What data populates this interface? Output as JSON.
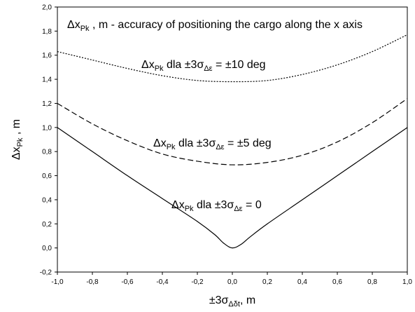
{
  "chart_data": {
    "type": "line",
    "title": "",
    "xlabel": "",
    "ylabel": "",
    "xlim": [
      -1.0,
      1.0
    ],
    "ylim": [
      -0.2,
      2.0
    ],
    "grid": false,
    "x_ticks": [
      "-1,0",
      "-0,8",
      "-0,6",
      "-0,4",
      "-0,2",
      "0,0",
      "0,2",
      "0,4",
      "0,6",
      "0,8",
      "1,0"
    ],
    "y_ticks": [
      "-0,2",
      "0,0",
      "0,2",
      "0,4",
      "0,6",
      "0,8",
      "1,0",
      "1,2",
      "1,4",
      "1,6",
      "1,8",
      "2,0"
    ],
    "series": [
      {
        "style": "dotted",
        "x": [
          -1.0,
          -0.8,
          -0.6,
          -0.4,
          -0.2,
          0.0,
          0.2,
          0.4,
          0.6,
          0.8,
          1.0
        ],
        "values": [
          1.63,
          1.56,
          1.49,
          1.43,
          1.39,
          1.38,
          1.39,
          1.44,
          1.52,
          1.63,
          1.77
        ]
      },
      {
        "style": "dashed",
        "x": [
          -1.0,
          -0.8,
          -0.6,
          -0.4,
          -0.2,
          0.0,
          0.2,
          0.4,
          0.6,
          0.8,
          1.0
        ],
        "values": [
          1.2,
          1.03,
          0.89,
          0.78,
          0.72,
          0.69,
          0.71,
          0.77,
          0.88,
          1.04,
          1.24
        ]
      },
      {
        "style": "solid",
        "x": [
          -1.0,
          -0.8,
          -0.6,
          -0.4,
          -0.2,
          -0.1,
          -0.05,
          0.0,
          0.05,
          0.1,
          0.2,
          0.4,
          0.6,
          0.8,
          1.0
        ],
        "values": [
          1.0,
          0.8,
          0.6,
          0.41,
          0.22,
          0.11,
          0.04,
          0.0,
          0.03,
          0.09,
          0.2,
          0.4,
          0.6,
          0.8,
          1.0
        ]
      }
    ]
  },
  "axis_titles": {
    "y": {
      "main": "Δx",
      "sub": "Pk",
      "tail": " , m"
    },
    "x": {
      "main": "±3σ",
      "sub": "Δδt",
      "tail": ", m"
    }
  },
  "annotations": {
    "top": {
      "main": "Δx",
      "sub": "Pk",
      "rest": " , m - accuracy of positioning the cargo along the x axis"
    },
    "dotted": {
      "main": "Δx",
      "sub1": "Pk",
      "mid": " dla ±3σ",
      "sub2": "Δε",
      "rest": " = ±10 deg"
    },
    "dashed": {
      "main": "Δx",
      "sub1": "Pk",
      "mid": " dla ±3σ",
      "sub2": "Δε",
      "rest": " = ±5 deg"
    },
    "solid": {
      "main": "Δx",
      "sub1": "Pk",
      "mid": " dla ±3σ",
      "sub2": "Δε",
      "rest": " = 0"
    }
  }
}
